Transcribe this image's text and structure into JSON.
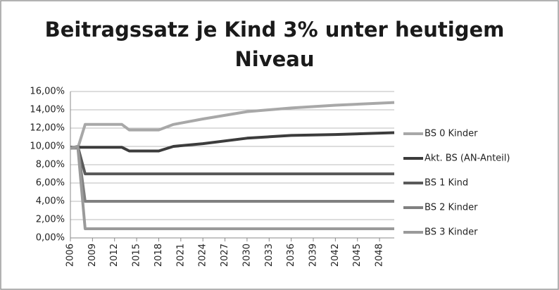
{
  "chart_data": {
    "type": "line",
    "title": [
      "Beitragssatz je Kind 3% unter heutigem",
      "Niveau"
    ],
    "x": [
      2006,
      2007,
      2008,
      2013,
      2014,
      2018,
      2020,
      2024,
      2030,
      2036,
      2042,
      2050
    ],
    "xlim": [
      2006,
      2050
    ],
    "xticks": [
      2006,
      2009,
      2012,
      2015,
      2018,
      2021,
      2024,
      2027,
      2030,
      2033,
      2036,
      2039,
      2042,
      2045,
      2048
    ],
    "ylim": [
      0,
      16
    ],
    "yticks": [
      {
        "value": 0,
        "label": "0,00%"
      },
      {
        "value": 2,
        "label": "2,00%"
      },
      {
        "value": 4,
        "label": "4,00%"
      },
      {
        "value": 6,
        "label": "6,00%"
      },
      {
        "value": 8,
        "label": "8,00%"
      },
      {
        "value": 10,
        "label": "10,00%"
      },
      {
        "value": 12,
        "label": "12,00%"
      },
      {
        "value": 14,
        "label": "14,00%"
      },
      {
        "value": 16,
        "label": "16,00%"
      }
    ],
    "grid": true,
    "legend": "right",
    "series": [
      {
        "name": "BS 0 Kinder",
        "color": "#a8a8a8",
        "values": [
          9.8,
          9.8,
          12.4,
          12.4,
          11.8,
          11.8,
          12.4,
          13.0,
          13.8,
          14.2,
          14.5,
          14.8
        ]
      },
      {
        "name": "Akt. BS (AN-Anteil)",
        "color": "#3c3c3c",
        "values": [
          9.9,
          9.9,
          9.9,
          9.9,
          9.5,
          9.5,
          10.0,
          10.3,
          10.9,
          11.2,
          11.3,
          11.5
        ]
      },
      {
        "name": "BS 1 Kind",
        "color": "#5a5a5a",
        "values": [
          9.8,
          10.0,
          7.0,
          7.0,
          7.0,
          7.0,
          7.0,
          7.0,
          7.0,
          7.0,
          7.0,
          7.0
        ]
      },
      {
        "name": "BS 2 Kinder",
        "color": "#808080",
        "values": [
          9.8,
          10.0,
          4.0,
          4.0,
          4.0,
          4.0,
          4.0,
          4.0,
          4.0,
          4.0,
          4.0,
          4.0
        ]
      },
      {
        "name": "BS 3 Kinder",
        "color": "#9a9a9a",
        "values": [
          9.8,
          10.0,
          1.0,
          1.0,
          1.0,
          1.0,
          1.0,
          1.0,
          1.0,
          1.0,
          1.0,
          1.0
        ]
      }
    ]
  }
}
